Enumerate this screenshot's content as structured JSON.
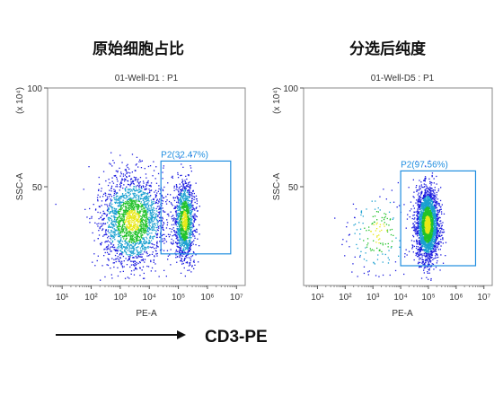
{
  "titles": {
    "left": "原始细胞占比",
    "right": "分选后纯度"
  },
  "footer_label": "CD3-PE",
  "colors": {
    "gate": "#1f8ee0",
    "density_low": "#1a1adf",
    "density_mid": "#1aa0d0",
    "density_high": "#22c22a",
    "density_peak": "#e8e818"
  },
  "chart_data": [
    {
      "type": "scatter",
      "subtitle": "01-Well-D1 : P1",
      "xlabel": "PE-A",
      "ylabel": "SSC-A",
      "ylabel_multiplier": "(x 10⁴)",
      "x_scale": "log",
      "x_ticks": [
        "10¹",
        "10²",
        "10³",
        "10⁴",
        "10⁵",
        "10⁶",
        "10⁷"
      ],
      "x_tick_exponents": [
        1,
        2,
        3,
        4,
        5,
        6,
        7
      ],
      "y_ticks": [
        50,
        100
      ],
      "ylim": [
        0,
        100
      ],
      "xlim_log10": [
        0.5,
        7.3
      ],
      "gate": {
        "name": "P2",
        "percent": "32.47%",
        "label": "P2(32.47%)",
        "x_log10": [
          4.4,
          6.8
        ],
        "y": [
          16,
          63
        ]
      },
      "populations": [
        {
          "center_log10": 3.4,
          "sd_log10": 0.55,
          "center_y": 33,
          "sd_y": 11,
          "count": 2200
        },
        {
          "center_log10": 5.2,
          "sd_log10": 0.17,
          "center_y": 33,
          "sd_y": 10,
          "count": 1300
        }
      ]
    },
    {
      "type": "scatter",
      "subtitle": "01-Well-D5 : P1",
      "xlabel": "PE-A",
      "ylabel": "SSC-A",
      "ylabel_multiplier": "(x 10⁴)",
      "x_scale": "log",
      "x_ticks": [
        "10¹",
        "10²",
        "10³",
        "10⁴",
        "10⁵",
        "10⁶",
        "10⁷"
      ],
      "x_tick_exponents": [
        1,
        2,
        3,
        4,
        5,
        6,
        7
      ],
      "y_ticks": [
        50,
        100
      ],
      "ylim": [
        0,
        100
      ],
      "xlim_log10": [
        0.5,
        7.3
      ],
      "gate": {
        "name": "P2",
        "percent": "97.56%",
        "label": "P2(97.56%)",
        "x_log10": [
          4.0,
          6.7
        ],
        "y": [
          10,
          58
        ]
      },
      "populations": [
        {
          "center_log10": 3.2,
          "sd_log10": 0.6,
          "center_y": 27,
          "sd_y": 11,
          "count": 180
        },
        {
          "center_log10": 4.95,
          "sd_log10": 0.2,
          "center_y": 31,
          "sd_y": 9,
          "count": 2600
        }
      ]
    }
  ]
}
